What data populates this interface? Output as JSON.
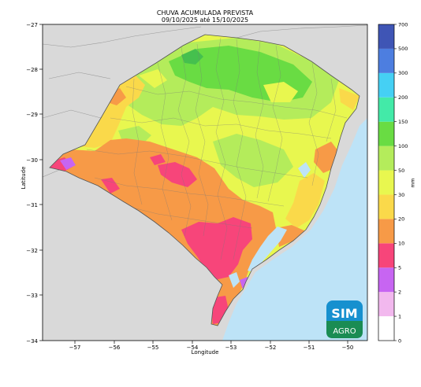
{
  "title_line1": "CHUVA ACUMULADA PREVISTA",
  "title_line2": "09/10/2025 até 15/10/2025",
  "axes": {
    "xlabel": "Longitude",
    "ylabel": "Latitude",
    "x_ticks": [
      "−57",
      "−56",
      "−55",
      "−54",
      "−53",
      "−52",
      "−51",
      "−50"
    ],
    "y_ticks": [
      "−27",
      "−28",
      "−29",
      "−30",
      "−31",
      "−32",
      "−33",
      "−34"
    ],
    "x_range": [
      -57.8,
      -49.6
    ],
    "y_range": [
      -34,
      -27
    ]
  },
  "colorbar": {
    "unit": "mm",
    "levels": [
      "0",
      "1",
      "2",
      "5",
      "10",
      "20",
      "30",
      "50",
      "100",
      "150",
      "200",
      "300",
      "500",
      "700"
    ],
    "colors": [
      "#ffffff",
      "#f2b8ee",
      "#c765f2",
      "#f7457a",
      "#f79a47",
      "#fad94a",
      "#e8f74f",
      "#b4ec5b",
      "#69dc43",
      "#43eaa8",
      "#45d0f4",
      "#4d7ee0",
      "#3f55b5"
    ]
  },
  "map_colors": {
    "ocean": "#bde3f7",
    "neighbors": "#d9d9d9"
  },
  "logo": {
    "top_text": "SIM",
    "bottom_text": "AGRO"
  }
}
